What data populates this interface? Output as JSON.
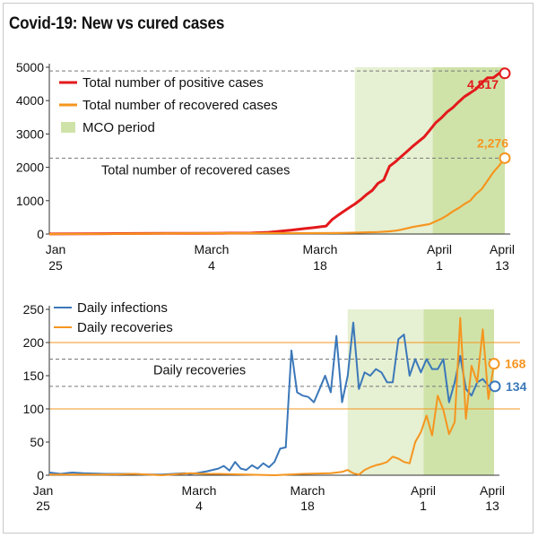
{
  "title": "Covid-19: New vs cured cases",
  "colors": {
    "positive": "#e3191c",
    "recovered": "#f5951f",
    "infections": "#3b78b9",
    "mco_light": "#e6f0d2",
    "mco_dark": "#cfe3a9",
    "grid_orange": "#f5951f",
    "dashed": "#777777"
  },
  "chart_data": [
    {
      "type": "line",
      "title": "Covid-19: New vs cured cases",
      "x_ticks": [
        {
          "line1": "Jan",
          "line2": "25",
          "day": 0
        },
        {
          "line1": "March",
          "line2": "4",
          "day": 39
        },
        {
          "line1": "March",
          "line2": "18",
          "day": 53
        },
        {
          "line1": "April",
          "line2": "1",
          "day": 67
        },
        {
          "line1": "April",
          "line2": "13",
          "day": 79
        }
      ],
      "x_range_days": [
        0,
        79
      ],
      "ylim": [
        0,
        5000
      ],
      "y_ticks": [
        0,
        1000,
        2000,
        3000,
        4000,
        5000
      ],
      "legend": [
        {
          "label": "Total number of positive cases",
          "kind": "line",
          "color": "#e3191c"
        },
        {
          "label": "Total number of recovered cases",
          "kind": "line",
          "color": "#f5951f"
        },
        {
          "label": "MCO period",
          "kind": "swatch",
          "color": "#cfe3a9"
        }
      ],
      "shaded_regions": [
        {
          "label": "MCO period",
          "start_day": 53,
          "end_day": 79
        }
      ],
      "reference_lines": [
        {
          "label": "Total number of recovered cases",
          "value": 2276
        }
      ],
      "end_labels": [
        {
          "text": "4,817",
          "series": "Total number of positive cases"
        },
        {
          "text": "2,276",
          "series": "Total number of recovered cases"
        }
      ],
      "series": [
        {
          "name": "Total number of positive cases",
          "color": "#e3191c",
          "x": [
            0,
            5,
            10,
            15,
            20,
            25,
            30,
            35,
            38,
            40,
            42,
            44,
            46,
            48,
            49,
            50,
            51,
            52,
            53,
            54,
            55,
            56,
            57,
            58,
            59,
            60,
            61,
            62,
            63,
            64,
            65,
            66,
            67,
            68,
            69,
            70,
            71,
            72,
            73,
            74,
            75,
            76,
            77,
            78,
            79
          ],
          "y": [
            4,
            8,
            10,
            16,
            18,
            22,
            25,
            29,
            50,
            83,
            117,
            158,
            197,
            238,
            428,
            553,
            673,
            790,
            900,
            1030,
            1183,
            1306,
            1518,
            1624,
            2031,
            2161,
            2320,
            2470,
            2626,
            2766,
            2908,
            3116,
            3333,
            3483,
            3662,
            3793,
            3963,
            4119,
            4228,
            4346,
            4530,
            4683,
            4683,
            4817,
            4817
          ]
        },
        {
          "name": "Total number of recovered cases",
          "color": "#f5951f",
          "x": [
            0,
            10,
            20,
            30,
            40,
            45,
            50,
            53,
            55,
            57,
            59,
            60,
            61,
            62,
            63,
            64,
            65,
            66,
            67,
            68,
            69,
            70,
            71,
            72,
            73,
            74,
            75,
            76,
            77,
            78,
            79
          ],
          "y": [
            0,
            5,
            15,
            24,
            26,
            27,
            30,
            40,
            50,
            60,
            80,
            100,
            130,
            170,
            210,
            240,
            270,
            300,
            380,
            460,
            560,
            680,
            780,
            900,
            1000,
            1200,
            1350,
            1600,
            1850,
            2050,
            2276
          ]
        }
      ]
    },
    {
      "type": "line",
      "x_ticks": [
        {
          "line1": "Jan",
          "line2": "25",
          "day": 0
        },
        {
          "line1": "March",
          "line2": "4",
          "day": 39
        },
        {
          "line1": "March",
          "line2": "18",
          "day": 53
        },
        {
          "line1": "April",
          "line2": "1",
          "day": 67
        },
        {
          "line1": "April",
          "line2": "13",
          "day": 79
        }
      ],
      "x_range_days": [
        0,
        79
      ],
      "ylim": [
        0,
        250
      ],
      "y_ticks": [
        0,
        50,
        100,
        150,
        200,
        250
      ],
      "gridlines_orange": [
        100,
        200
      ],
      "legend": [
        {
          "label": "Daily infections",
          "kind": "line",
          "color": "#3b78b9"
        },
        {
          "label": "Daily recoveries",
          "kind": "line",
          "color": "#f5951f"
        }
      ],
      "shaded_regions": [
        {
          "label": "MCO period",
          "start_day": 53,
          "end_day": 79
        }
      ],
      "reference_lines": [
        {
          "label": "Daily recoveries",
          "value": 175
        },
        {
          "label": "",
          "value": 134
        }
      ],
      "end_labels": [
        {
          "text": "168",
          "series": "Daily recoveries"
        },
        {
          "text": "134",
          "series": "Daily infections"
        }
      ],
      "series": [
        {
          "name": "Daily infections",
          "color": "#3b78b9",
          "x": [
            0,
            2,
            4,
            6,
            10,
            15,
            17,
            20,
            22,
            24,
            25,
            26,
            28,
            29,
            30,
            31,
            32,
            33,
            34,
            35,
            36,
            37,
            38,
            39,
            40,
            41,
            42,
            43,
            44,
            45,
            46,
            47,
            48,
            49,
            50,
            51,
            52,
            53,
            54,
            55,
            56,
            57,
            58,
            59,
            60,
            61,
            62,
            63,
            64,
            65,
            66,
            67,
            68,
            69,
            70,
            71,
            72,
            73,
            74,
            75,
            76,
            77,
            78,
            79
          ],
          "y": [
            4,
            2,
            4,
            3,
            2,
            2,
            1,
            1,
            2,
            3,
            2,
            3,
            6,
            8,
            10,
            14,
            7,
            20,
            10,
            8,
            15,
            10,
            18,
            12,
            20,
            40,
            42,
            188,
            125,
            120,
            118,
            110,
            130,
            150,
            125,
            210,
            110,
            150,
            230,
            130,
            155,
            150,
            160,
            155,
            140,
            140,
            205,
            212,
            150,
            175,
            155,
            175,
            160,
            160,
            175,
            110,
            140,
            180,
            130,
            120,
            140,
            145,
            135,
            134
          ]
        },
        {
          "name": "Daily recoveries",
          "color": "#f5951f",
          "x": [
            0,
            5,
            10,
            15,
            20,
            25,
            28,
            30,
            35,
            40,
            45,
            50,
            52,
            53,
            54,
            55,
            56,
            57,
            58,
            59,
            60,
            61,
            62,
            63,
            64,
            65,
            66,
            67,
            68,
            69,
            70,
            71,
            72,
            73,
            74,
            75,
            76,
            77,
            78,
            79
          ],
          "y": [
            1,
            1,
            1,
            2,
            0,
            3,
            2,
            2,
            1,
            0,
            2,
            3,
            5,
            8,
            3,
            1,
            8,
            12,
            15,
            17,
            20,
            28,
            25,
            20,
            18,
            50,
            65,
            90,
            60,
            120,
            98,
            62,
            80,
            237,
            85,
            165,
            140,
            220,
            115,
            168
          ]
        }
      ]
    }
  ]
}
